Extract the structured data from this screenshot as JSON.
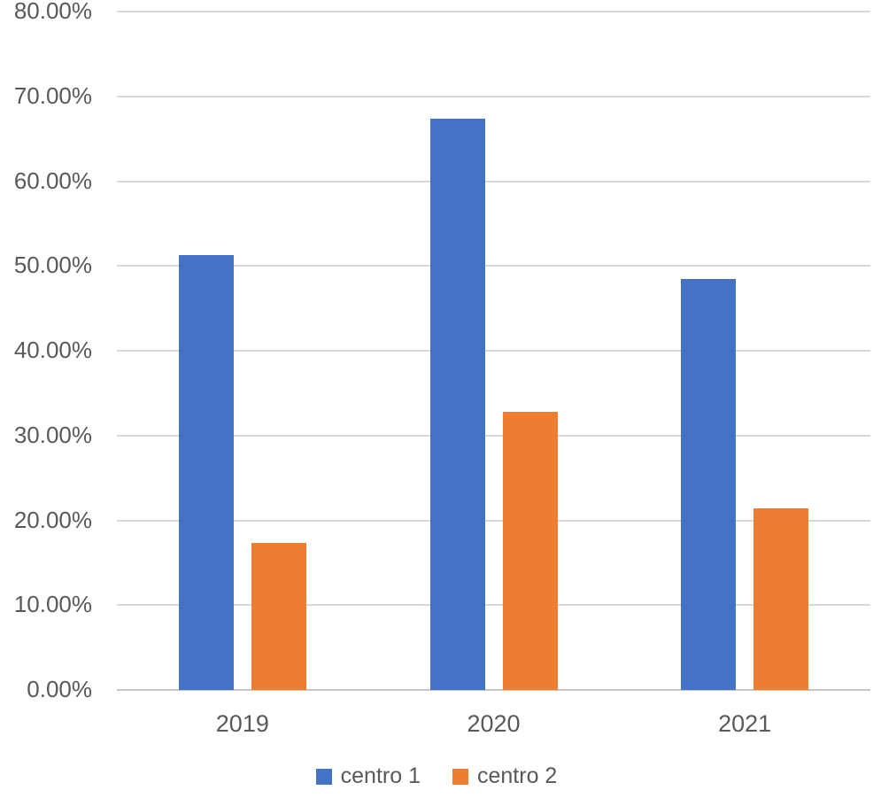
{
  "chart_data": {
    "type": "bar",
    "title": "",
    "xlabel": "",
    "ylabel": "",
    "categories": [
      "2019",
      "2020",
      "2021"
    ],
    "series": [
      {
        "name": "centro 1",
        "color": "#4472C4",
        "values": [
          51.3,
          67.4,
          48.5
        ]
      },
      {
        "name": "centro 2",
        "color": "#ED7D31",
        "values": [
          17.3,
          32.8,
          21.4
        ]
      }
    ],
    "y_axis": {
      "min": 0,
      "max": 80,
      "step": 10,
      "unit": "%",
      "tick_labels": [
        "0.00%",
        "10.00%",
        "20.00%",
        "30.00%",
        "40.00%",
        "50.00%",
        "60.00%",
        "70.00%",
        "80.00%"
      ]
    },
    "grid": true,
    "legend": {
      "position": "bottom",
      "entries": [
        "centro 1",
        "centro 2"
      ]
    }
  },
  "styles": {
    "background": "#ffffff",
    "text_color": "#595959",
    "gridline_color": "#d9d9d9",
    "axis_line_color": "#c6c6c6"
  }
}
